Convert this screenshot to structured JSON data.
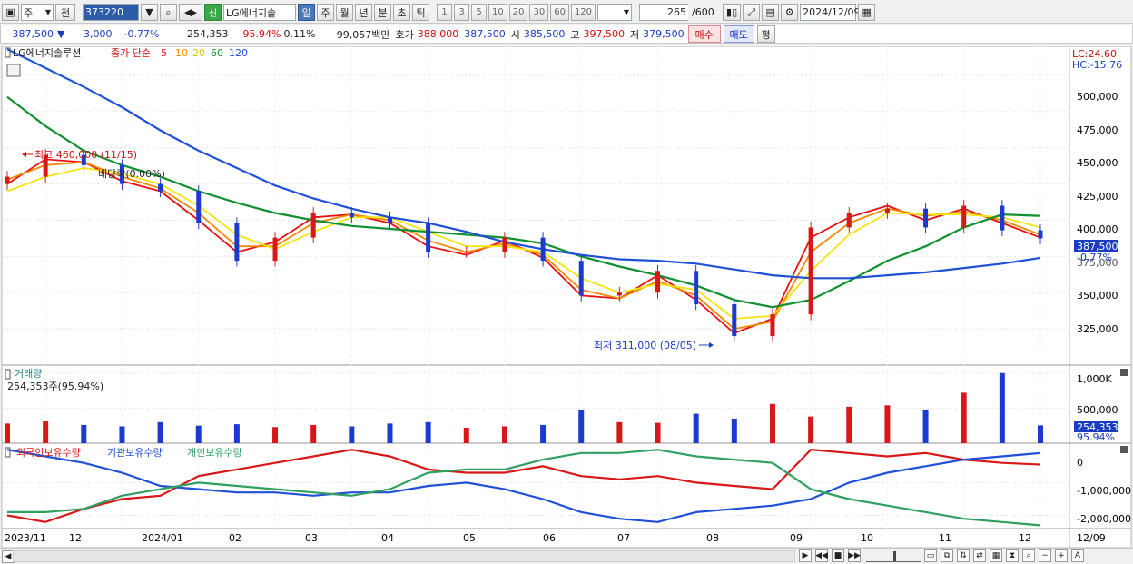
{
  "toolbar": {
    "market": "주",
    "prev_label": "전",
    "code": "373220",
    "badge": "신",
    "stock_name": "LG에너지솔",
    "period_tabs": [
      "일",
      "주",
      "월",
      "년",
      "분",
      "초",
      "틱"
    ],
    "active_period": "일",
    "intervals": [
      "1",
      "3",
      "5",
      "10",
      "20",
      "30",
      "60",
      "120"
    ],
    "count": "265",
    "max_count": "/600",
    "date": "2024/12/09"
  },
  "quote": {
    "price": "387,500",
    "arrow": "▼",
    "change": "3,000",
    "change_pct": "-0.77%",
    "volume": "254,353",
    "vol_ratio": "95.94%",
    "turnover": "0.11%",
    "amount": "99,057백만",
    "ask_label": "호가",
    "ask": "388,000",
    "bid": "387,500",
    "open_label": "시",
    "open": "385,500",
    "high_label": "고",
    "high": "397,500",
    "low_label": "저",
    "low": "379,500",
    "buy": "매수",
    "sell": "매도",
    "eval": "평"
  },
  "price_pane": {
    "legend_name": "LG에너지솔루션",
    "legend_type": "종가 단순",
    "ma_periods": [
      "5",
      "10",
      "20",
      "60",
      "120"
    ],
    "lc_label": "LC:24.60",
    "hc_label": "HC:-15.76",
    "y_ticks": [
      "500,000",
      "475,000",
      "450,000",
      "425,000",
      "400,000",
      "375,000",
      "350,000",
      "325,000"
    ],
    "max_label": "최고 460,000 (11/15)",
    "min_label": "최저 311,000 (08/05)",
    "dividend_label": "배당락(0.00%)",
    "current_price_box": "387,500",
    "current_pct_label": "-0.77%"
  },
  "volume_pane": {
    "title": "거래량",
    "info": "254,353주(95.94%)",
    "y_ticks": [
      "1,000K",
      "500,000"
    ],
    "current_box": "254,353",
    "current_pct": "95.94%"
  },
  "holding_pane": {
    "legend": [
      "외국인보유수량",
      "기관보유수량",
      "개인보유수량"
    ],
    "y_ticks": [
      "0",
      "-1,000,000",
      "-2,000,000"
    ]
  },
  "x_axis": {
    "labels": [
      "2023/11",
      "12",
      "2024/01",
      "02",
      "03",
      "04",
      "05",
      "06",
      "07",
      "08",
      "09",
      "10",
      "11",
      "12"
    ],
    "right_label": "12/09"
  },
  "colors": {
    "up": "#d81818",
    "down": "#1a3ad0",
    "ma5": "#e81010",
    "ma10": "#f08a00",
    "ma20": "#f4e410",
    "ma60": "#109030",
    "ma120": "#2050d8",
    "foreign": "#d81818",
    "institution": "#2050d8",
    "individual": "#30a060"
  },
  "chart_data": [
    {
      "type": "candlestick",
      "title": "LG에너지솔루션",
      "x_range": [
        "2023/11",
        "2024/12/09"
      ],
      "ylim": [
        300000,
        520000
      ],
      "annotations": {
        "high": {
          "value": 460000,
          "date": "11/15"
        },
        "low": {
          "value": 311000,
          "date": "08/05"
        }
      },
      "last": {
        "close": 387500,
        "open": 385500,
        "high": 397500,
        "low": 379500
      },
      "series": [
        {
          "name": "close",
          "x": [
            "2023/11/01",
            "2023/11/15",
            "2023/12/01",
            "2023/12/15",
            "2024/01/02",
            "2024/01/15",
            "2024/02/01",
            "2024/02/15",
            "2024/03/01",
            "2024/03/15",
            "2024/04/01",
            "2024/04/15",
            "2024/05/01",
            "2024/05/15",
            "2024/06/01",
            "2024/06/15",
            "2024/07/01",
            "2024/07/15",
            "2024/08/01",
            "2024/08/15",
            "2024/09/01",
            "2024/09/15",
            "2024/10/01",
            "2024/10/15",
            "2024/11/01",
            "2024/11/15",
            "2024/12/01",
            "2024/12/09"
          ],
          "values": [
            430000,
            445000,
            438000,
            425000,
            420000,
            398000,
            372000,
            388000,
            405000,
            402000,
            398000,
            378000,
            378000,
            388000,
            372000,
            348000,
            350000,
            365000,
            342000,
            320000,
            335000,
            395000,
            405000,
            408000,
            395000,
            410000,
            393000,
            387500
          ]
        },
        {
          "name": "5",
          "values": [
            425000,
            442000,
            440000,
            427000,
            420000,
            400000,
            378000,
            385000,
            402000,
            404000,
            398000,
            382000,
            376000,
            386000,
            374000,
            348000,
            346000,
            362000,
            345000,
            322000,
            332000,
            388000,
            402000,
            410000,
            400000,
            408000,
            398000,
            388000
          ]
        },
        {
          "name": "10",
          "values": [
            428000,
            438000,
            440000,
            430000,
            422000,
            405000,
            382000,
            382000,
            398000,
            404000,
            400000,
            386000,
            378000,
            384000,
            376000,
            352000,
            346000,
            358000,
            348000,
            325000,
            330000,
            378000,
            398000,
            408000,
            403000,
            406000,
            400000,
            390000
          ]
        },
        {
          "name": "20",
          "values": [
            420000,
            430000,
            436000,
            432000,
            425000,
            410000,
            390000,
            380000,
            392000,
            402000,
            402000,
            392000,
            382000,
            382000,
            378000,
            360000,
            350000,
            356000,
            352000,
            332000,
            334000,
            365000,
            390000,
            405000,
            404000,
            404000,
            402000,
            395000
          ]
        },
        {
          "name": "60",
          "values": [
            485000,
            465000,
            448000,
            438000,
            430000,
            420000,
            412000,
            405000,
            400000,
            396000,
            394000,
            392000,
            390000,
            388000,
            384000,
            375000,
            368000,
            362000,
            355000,
            345000,
            340000,
            345000,
            358000,
            372000,
            382000,
            395000,
            404000,
            403000
          ]
        },
        {
          "name": "120",
          "values": [
            518000,
            505000,
            492000,
            478000,
            462000,
            448000,
            436000,
            424000,
            415000,
            408000,
            402000,
            398000,
            392000,
            385000,
            380000,
            376000,
            373000,
            372000,
            370000,
            366000,
            362000,
            360000,
            360000,
            362000,
            364000,
            367000,
            370000,
            374000
          ]
        }
      ]
    },
    {
      "type": "bar",
      "title": "거래량",
      "ylim": [
        0,
        1100000
      ],
      "last": 254353,
      "series": [
        {
          "name": "volume",
          "values": [
            280000,
            320000,
            260000,
            240000,
            300000,
            250000,
            270000,
            230000,
            260000,
            240000,
            280000,
            300000,
            220000,
            240000,
            260000,
            480000,
            300000,
            290000,
            420000,
            350000,
            560000,
            380000,
            520000,
            540000,
            480000,
            720000,
            1000000,
            254353
          ]
        }
      ]
    },
    {
      "type": "line",
      "ylim": [
        -2400000,
        200000
      ],
      "series": [
        {
          "name": "외국인보유수량",
          "values": [
            -2000000,
            -2200000,
            -1800000,
            -1500000,
            -1400000,
            -800000,
            -600000,
            -400000,
            -200000,
            0,
            -200000,
            -600000,
            -700000,
            -700000,
            -500000,
            -800000,
            -900000,
            -800000,
            -1000000,
            -1100000,
            -1200000,
            0,
            -100000,
            -200000,
            -100000,
            -300000,
            -400000,
            -450000
          ]
        },
        {
          "name": "기관보유수량",
          "values": [
            0,
            -200000,
            -400000,
            -700000,
            -1100000,
            -1200000,
            -1300000,
            -1300000,
            -1400000,
            -1300000,
            -1300000,
            -1100000,
            -1000000,
            -1200000,
            -1500000,
            -1900000,
            -2100000,
            -2200000,
            -1900000,
            -1800000,
            -1700000,
            -1500000,
            -1000000,
            -700000,
            -500000,
            -300000,
            -200000,
            -100000
          ]
        },
        {
          "name": "개인보유수량",
          "values": [
            -1900000,
            -1900000,
            -1800000,
            -1400000,
            -1200000,
            -1000000,
            -1100000,
            -1200000,
            -1300000,
            -1400000,
            -1200000,
            -700000,
            -600000,
            -600000,
            -300000,
            -100000,
            -100000,
            0,
            -200000,
            -300000,
            -400000,
            -1200000,
            -1500000,
            -1700000,
            -1900000,
            -2100000,
            -2200000,
            -2300000
          ]
        }
      ]
    }
  ]
}
